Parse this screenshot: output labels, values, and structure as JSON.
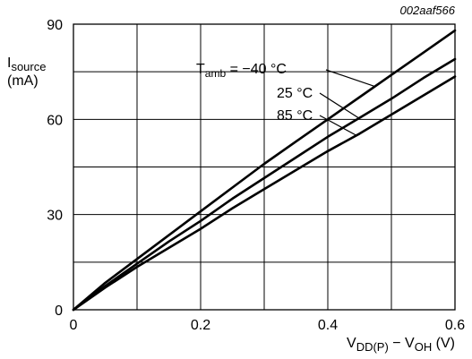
{
  "figure_id": "002aaf566",
  "chart_data": {
    "type": "line",
    "ylabel_main": "I",
    "ylabel_sub": "source",
    "ylabel_unit": "(mA)",
    "xlabel_parts": [
      {
        "text": "V",
        "sub": false
      },
      {
        "text": "DD(P)",
        "sub": true
      },
      {
        "text": " − V",
        "sub": false
      },
      {
        "text": "OH",
        "sub": true
      },
      {
        "text": " (V)",
        "sub": false
      }
    ],
    "xlim": [
      0,
      0.6
    ],
    "ylim": [
      0,
      90
    ],
    "x_ticks": [
      0,
      0.2,
      0.4,
      0.6
    ],
    "x_tick_labels": [
      "0",
      "0.2",
      "0.4",
      "0.6"
    ],
    "y_ticks": [
      0,
      30,
      60,
      90
    ],
    "y_tick_labels": [
      "0",
      "30",
      "60",
      "90"
    ],
    "x_grid": [
      0,
      0.1,
      0.2,
      0.3,
      0.4,
      0.5,
      0.6
    ],
    "y_grid": [
      0,
      15,
      30,
      45,
      60,
      75,
      90
    ],
    "grid": true,
    "annotations": {
      "tamb_prefix": "T",
      "tamb_sub": "amb",
      "label1": " = −40 °C",
      "label2": "25 °C",
      "label3": "85 °C"
    },
    "series": [
      {
        "label_key": "label1",
        "x": [
          0,
          0.05,
          0.1,
          0.15,
          0.2,
          0.25,
          0.3,
          0.35,
          0.4,
          0.45,
          0.5,
          0.55,
          0.6
        ],
        "y": [
          0,
          8.5,
          16,
          23.5,
          31,
          38.5,
          46,
          53,
          60,
          67,
          74,
          81,
          88
        ]
      },
      {
        "label_key": "label2",
        "x": [
          0,
          0.05,
          0.1,
          0.15,
          0.2,
          0.25,
          0.3,
          0.35,
          0.4,
          0.45,
          0.5,
          0.55,
          0.6
        ],
        "y": [
          0,
          7.5,
          14.5,
          21.5,
          28,
          35,
          41.5,
          48,
          54.5,
          60.5,
          66.5,
          73,
          79
        ]
      },
      {
        "label_key": "label3",
        "x": [
          0,
          0.05,
          0.1,
          0.15,
          0.2,
          0.25,
          0.3,
          0.35,
          0.4,
          0.45,
          0.5,
          0.55,
          0.6
        ],
        "y": [
          0,
          7,
          13.5,
          19.5,
          25.5,
          32,
          38,
          44,
          50,
          55.5,
          61.5,
          67.5,
          73.5
        ]
      }
    ]
  }
}
